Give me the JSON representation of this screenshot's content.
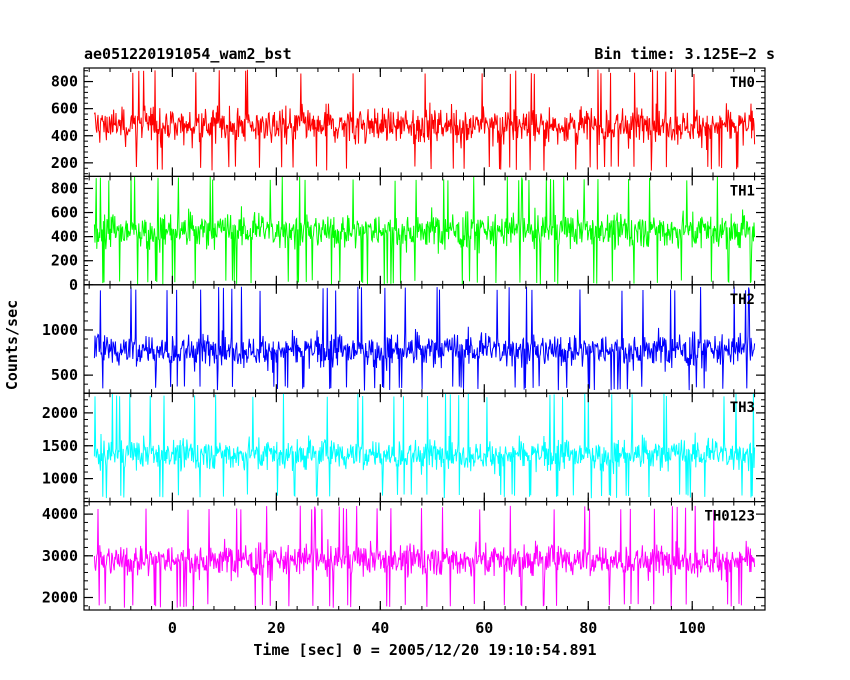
{
  "chart_data": {
    "type": "line",
    "title_left": "ae051220191054_wam2_bst",
    "title_right": "Bin time: 3.125E−2 s",
    "xlabel": "Time [sec] 0 = 2005/12/20 19:10:54.891",
    "ylabel": "Counts/sec",
    "xlim": [
      -17,
      114
    ],
    "x_data_range": [
      -15,
      112
    ],
    "xticks": [
      0,
      20,
      40,
      60,
      80,
      100
    ],
    "xtick_labels": [
      "0",
      "20",
      "40",
      "60",
      "80",
      "100"
    ],
    "grid": false,
    "panels": [
      {
        "name": "TH0",
        "color": "#ff0000",
        "ylim": [
          100,
          900
        ],
        "yticks": [
          200,
          400,
          600,
          800
        ],
        "ytick_labels": [
          "200",
          "400",
          "600",
          "800"
        ],
        "mean": 480,
        "spread": 350,
        "low_extreme": 140,
        "high_extreme": 890
      },
      {
        "name": "TH1",
        "color": "#00ff00",
        "ylim": [
          0,
          900
        ],
        "yticks": [
          0,
          200,
          400,
          600,
          800
        ],
        "ytick_labels": [
          "0",
          "200",
          "400",
          "600",
          "800"
        ],
        "mean": 450,
        "spread": 380,
        "low_extreme": 0,
        "high_extreme": 900
      },
      {
        "name": "TH2",
        "color": "#0000ff",
        "ylim": [
          300,
          1500
        ],
        "yticks": [
          500,
          1000
        ],
        "ytick_labels": [
          "500",
          "1000"
        ],
        "mean": 780,
        "spread": 480,
        "low_extreme": 330,
        "high_extreme": 1480
      },
      {
        "name": "TH3",
        "color": "#00ffff",
        "ylim": [
          650,
          2300
        ],
        "yticks": [
          1000,
          1500,
          2000
        ],
        "ytick_labels": [
          "1000",
          "1500",
          "2000"
        ],
        "mean": 1370,
        "spread": 620,
        "low_extreme": 700,
        "high_extreme": 2300
      },
      {
        "name": "TH0123",
        "color": "#ff00ff",
        "ylim": [
          1700,
          4300
        ],
        "yticks": [
          2000,
          3000,
          4000
        ],
        "ytick_labels": [
          "2000",
          "3000",
          "4000"
        ],
        "mean": 2900,
        "spread": 1000,
        "low_extreme": 1750,
        "high_extreme": 4200
      }
    ]
  }
}
